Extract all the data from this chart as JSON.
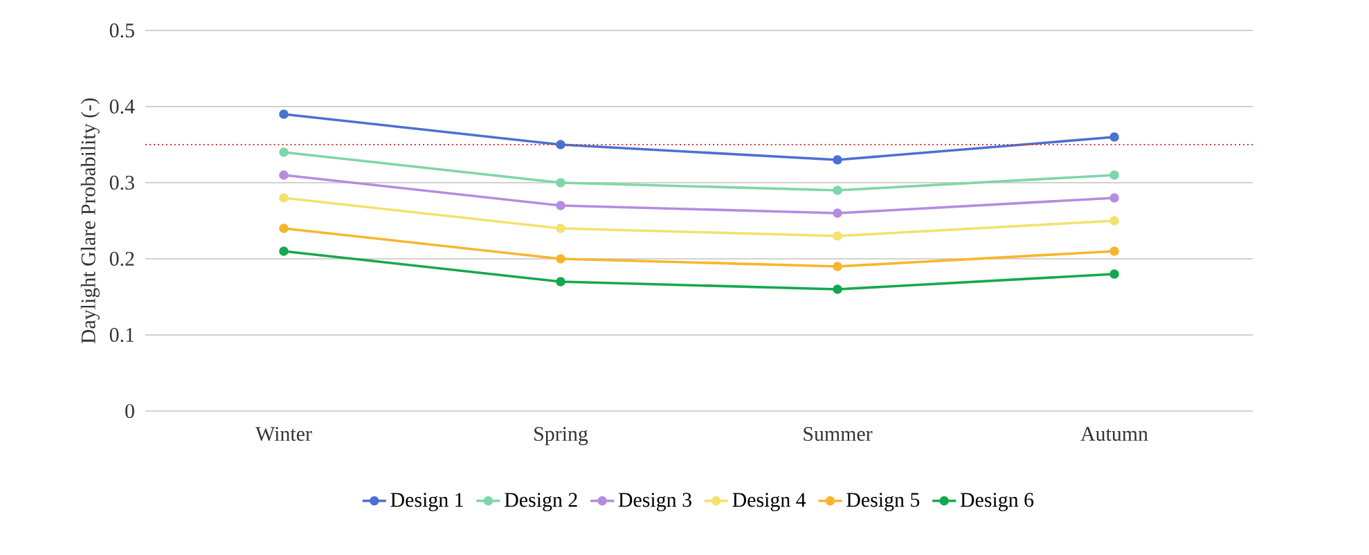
{
  "chart_data": {
    "type": "line",
    "ylabel": "Daylight Glare Probability (-)",
    "categories": [
      "Winter",
      "Spring",
      "Summer",
      "Autumn"
    ],
    "series": [
      {
        "name": "Design 1",
        "color": "#4a70d2",
        "values": [
          0.39,
          0.35,
          0.33,
          0.36
        ]
      },
      {
        "name": "Design 2",
        "color": "#7fd6a9",
        "values": [
          0.34,
          0.3,
          0.29,
          0.31
        ]
      },
      {
        "name": "Design 3",
        "color": "#b58ce0",
        "values": [
          0.31,
          0.27,
          0.26,
          0.28
        ]
      },
      {
        "name": "Design 4",
        "color": "#f2e26e",
        "values": [
          0.28,
          0.24,
          0.23,
          0.25
        ]
      },
      {
        "name": "Design 5",
        "color": "#f9b52a",
        "values": [
          0.24,
          0.2,
          0.19,
          0.21
        ]
      },
      {
        "name": "Design 6",
        "color": "#14a84f",
        "values": [
          0.21,
          0.17,
          0.16,
          0.18
        ]
      }
    ],
    "ylim": [
      0,
      0.5
    ],
    "yticks": [
      0,
      0.1,
      0.2,
      0.3,
      0.4,
      0.5
    ],
    "grid": "y",
    "legend": "bottom",
    "marker": "circle",
    "line_style": "solid",
    "ref_lines": [
      {
        "axis": "y",
        "value": 0.35,
        "color": "#e03030",
        "line_style": "dotted"
      }
    ]
  }
}
